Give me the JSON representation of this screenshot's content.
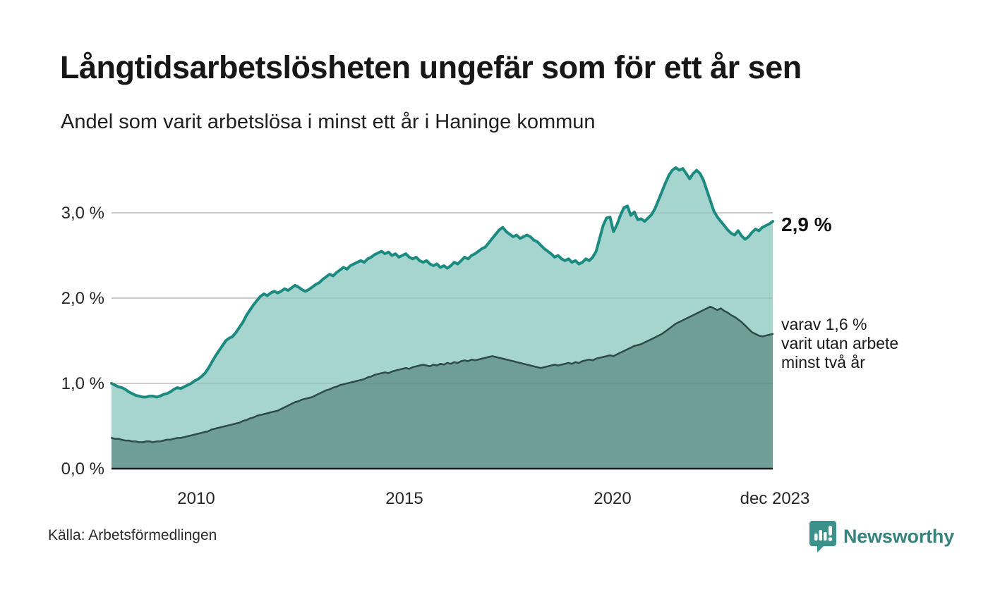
{
  "header": {
    "title": "Långtidsarbetslösheten ungefär som för ett år sen",
    "subtitle": "Andel som varit arbetslösa i minst ett år i Haninge kommun"
  },
  "chart_data": {
    "type": "area",
    "unit": "%",
    "x_start": "jan 2008",
    "x_end": "dec 2023",
    "points_per_year": 12,
    "x_tick_labels": [
      "2010",
      "2015",
      "2020",
      "dec 2023"
    ],
    "y_tick_labels": [
      "0,0 %",
      "1,0 %",
      "2,0 %",
      "3,0 %"
    ],
    "ylim": [
      0,
      3.6
    ],
    "grid": "horizontal",
    "legend_position": "none",
    "series": [
      {
        "name": "Andel arbetslösa minst ett år",
        "line_color": "#1b8a80",
        "fill_color": "#a6d4ce",
        "values": [
          1.0,
          0.98,
          0.96,
          0.95,
          0.93,
          0.9,
          0.88,
          0.86,
          0.85,
          0.84,
          0.84,
          0.85,
          0.85,
          0.84,
          0.85,
          0.87,
          0.88,
          0.9,
          0.93,
          0.95,
          0.94,
          0.96,
          0.98,
          1.0,
          1.03,
          1.05,
          1.08,
          1.12,
          1.18,
          1.25,
          1.32,
          1.38,
          1.44,
          1.5,
          1.53,
          1.55,
          1.6,
          1.66,
          1.72,
          1.8,
          1.86,
          1.92,
          1.97,
          2.02,
          2.05,
          2.03,
          2.06,
          2.08,
          2.06,
          2.08,
          2.11,
          2.09,
          2.12,
          2.15,
          2.13,
          2.1,
          2.08,
          2.1,
          2.13,
          2.16,
          2.18,
          2.22,
          2.25,
          2.28,
          2.26,
          2.3,
          2.33,
          2.36,
          2.34,
          2.38,
          2.4,
          2.42,
          2.44,
          2.42,
          2.46,
          2.48,
          2.51,
          2.53,
          2.55,
          2.52,
          2.54,
          2.5,
          2.52,
          2.48,
          2.5,
          2.52,
          2.48,
          2.46,
          2.48,
          2.44,
          2.42,
          2.44,
          2.4,
          2.38,
          2.4,
          2.36,
          2.38,
          2.35,
          2.38,
          2.42,
          2.4,
          2.44,
          2.48,
          2.46,
          2.5,
          2.52,
          2.55,
          2.58,
          2.6,
          2.65,
          2.7,
          2.75,
          2.8,
          2.83,
          2.78,
          2.75,
          2.72,
          2.74,
          2.7,
          2.72,
          2.74,
          2.72,
          2.68,
          2.66,
          2.62,
          2.58,
          2.55,
          2.52,
          2.48,
          2.5,
          2.46,
          2.44,
          2.46,
          2.42,
          2.44,
          2.4,
          2.42,
          2.46,
          2.44,
          2.48,
          2.55,
          2.7,
          2.85,
          2.94,
          2.95,
          2.78,
          2.86,
          2.97,
          3.06,
          3.08,
          2.97,
          3.01,
          2.92,
          2.93,
          2.9,
          2.94,
          2.98,
          3.05,
          3.15,
          3.25,
          3.35,
          3.44,
          3.5,
          3.53,
          3.5,
          3.52,
          3.46,
          3.4,
          3.46,
          3.5,
          3.46,
          3.38,
          3.26,
          3.14,
          3.02,
          2.95,
          2.9,
          2.85,
          2.8,
          2.76,
          2.74,
          2.79,
          2.73,
          2.69,
          2.72,
          2.77,
          2.81,
          2.79,
          2.83,
          2.85,
          2.87,
          2.9
        ]
      },
      {
        "name": "Andel arbetslösa minst två år",
        "line_color": "#2d4b48",
        "fill_color": "#6f9e99",
        "values": [
          0.36,
          0.35,
          0.35,
          0.34,
          0.33,
          0.33,
          0.32,
          0.32,
          0.31,
          0.31,
          0.32,
          0.32,
          0.31,
          0.32,
          0.32,
          0.33,
          0.34,
          0.34,
          0.35,
          0.36,
          0.36,
          0.37,
          0.38,
          0.39,
          0.4,
          0.41,
          0.42,
          0.43,
          0.44,
          0.46,
          0.47,
          0.48,
          0.49,
          0.5,
          0.51,
          0.52,
          0.53,
          0.54,
          0.56,
          0.57,
          0.59,
          0.6,
          0.62,
          0.63,
          0.64,
          0.65,
          0.66,
          0.67,
          0.68,
          0.7,
          0.72,
          0.74,
          0.76,
          0.78,
          0.79,
          0.81,
          0.82,
          0.83,
          0.84,
          0.86,
          0.88,
          0.9,
          0.92,
          0.93,
          0.95,
          0.96,
          0.98,
          0.99,
          1.0,
          1.01,
          1.02,
          1.03,
          1.04,
          1.05,
          1.07,
          1.08,
          1.1,
          1.11,
          1.12,
          1.13,
          1.12,
          1.14,
          1.15,
          1.16,
          1.17,
          1.18,
          1.17,
          1.19,
          1.2,
          1.21,
          1.22,
          1.21,
          1.2,
          1.22,
          1.21,
          1.23,
          1.22,
          1.24,
          1.23,
          1.25,
          1.24,
          1.26,
          1.27,
          1.26,
          1.28,
          1.27,
          1.28,
          1.29,
          1.3,
          1.31,
          1.32,
          1.31,
          1.3,
          1.29,
          1.28,
          1.27,
          1.26,
          1.25,
          1.24,
          1.23,
          1.22,
          1.21,
          1.2,
          1.19,
          1.18,
          1.19,
          1.2,
          1.21,
          1.22,
          1.21,
          1.22,
          1.23,
          1.24,
          1.23,
          1.25,
          1.24,
          1.26,
          1.27,
          1.28,
          1.27,
          1.29,
          1.3,
          1.31,
          1.32,
          1.33,
          1.32,
          1.34,
          1.36,
          1.38,
          1.4,
          1.42,
          1.44,
          1.45,
          1.46,
          1.48,
          1.5,
          1.52,
          1.54,
          1.56,
          1.58,
          1.61,
          1.64,
          1.67,
          1.7,
          1.72,
          1.74,
          1.76,
          1.78,
          1.8,
          1.82,
          1.84,
          1.86,
          1.88,
          1.9,
          1.88,
          1.86,
          1.88,
          1.85,
          1.83,
          1.8,
          1.78,
          1.75,
          1.72,
          1.68,
          1.64,
          1.6,
          1.58,
          1.56,
          1.55,
          1.56,
          1.57,
          1.58
        ]
      }
    ],
    "annotations": {
      "end_value_label": "2,9 %",
      "secondary_note_lines": [
        "varav 1,6 %",
        "varit utan arbete",
        "minst två år"
      ]
    }
  },
  "footer": {
    "source": "Källa: Arbetsförmedlingen",
    "brand": "Newsworthy"
  },
  "colors": {
    "series1_line": "#1b8a80",
    "series1_fill": "#a6d4ce",
    "series2_line": "#2d4b48",
    "series2_fill": "#6f9e99",
    "gridline": "#d9d9d9",
    "baseline": "#1d1d1d",
    "brand_teal": "#3b928a"
  }
}
